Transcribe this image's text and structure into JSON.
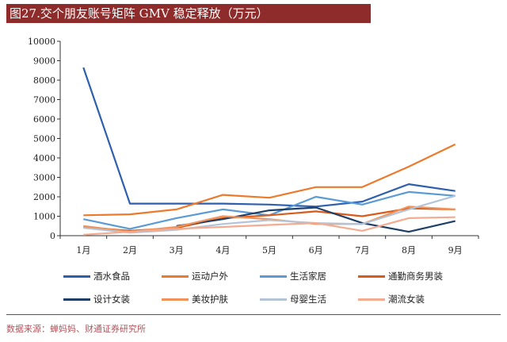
{
  "chart_data": {
    "type": "line",
    "title": "图27.交个朋友账号矩阵 GMV 稳定释放（万元）",
    "categories": [
      "1月",
      "2月",
      "3月",
      "4月",
      "5月",
      "6月",
      "7月",
      "8月",
      "9月"
    ],
    "ylim": [
      0,
      10000
    ],
    "yticks": [
      0,
      1000,
      2000,
      3000,
      4000,
      5000,
      6000,
      7000,
      8000,
      9000,
      10000
    ],
    "grid": false,
    "legend": "bottom",
    "series": [
      {
        "name": "酒水食品",
        "color": "#2e5fae",
        "values": [
          8650,
          1650,
          1650,
          1650,
          1600,
          1500,
          1750,
          2650,
          2300
        ]
      },
      {
        "name": "运动户外",
        "color": "#ec7a2c",
        "values": [
          1050,
          1100,
          1350,
          2100,
          1950,
          2500,
          2500,
          3550,
          4700
        ]
      },
      {
        "name": "生活家居",
        "color": "#5b9bd5",
        "values": [
          850,
          350,
          900,
          1350,
          1050,
          2000,
          1600,
          2250,
          2050
        ]
      },
      {
        "name": "通勤商务男装",
        "color": "#d95b1a",
        "values": [
          450,
          250,
          400,
          900,
          1050,
          1250,
          1000,
          1400,
          1350
        ]
      },
      {
        "name": "设计女装",
        "color": "#1f3f68",
        "values": [
          null,
          null,
          500,
          850,
          1300,
          1450,
          650,
          200,
          750
        ]
      },
      {
        "name": "美妆护肤",
        "color": "#f0935a",
        "values": [
          500,
          200,
          450,
          1000,
          850,
          600,
          600,
          1500,
          1350
        ]
      },
      {
        "name": "母婴生活",
        "color": "#b4c4d6",
        "values": [
          400,
          150,
          300,
          600,
          800,
          650,
          600,
          1350,
          2050
        ]
      },
      {
        "name": "潮流女装",
        "color": "#f3ab92",
        "values": [
          50,
          200,
          350,
          450,
          550,
          650,
          250,
          900,
          950
        ]
      }
    ]
  },
  "source": "数据来源：蝉妈妈、财通证券研究所"
}
